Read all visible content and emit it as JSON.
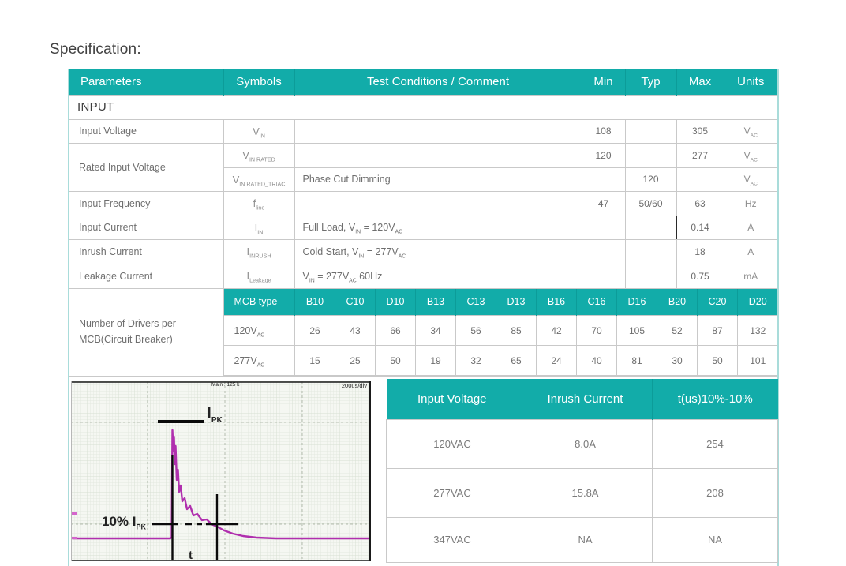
{
  "title": "Specification:",
  "colors": {
    "teal": "#12aca9",
    "magenta": "#b02fae"
  },
  "spec_table": {
    "headers": [
      "Parameters",
      "Symbols",
      "Test Conditions / Comment",
      "Min",
      "Typ",
      "Max",
      "Units"
    ],
    "section": "INPUT",
    "rows": [
      {
        "param": "Input Voltage",
        "symbol": [
          {
            "t": "V"
          },
          {
            "s": "IN"
          }
        ],
        "cond": [],
        "min": "108",
        "typ": "",
        "max": "305",
        "units": [
          {
            "t": "V"
          },
          {
            "s": "AC"
          }
        ]
      },
      {
        "param": "Rated Input Voltage",
        "symbol": [
          {
            "t": "V"
          },
          {
            "s": "IN RATED"
          }
        ],
        "cond": [],
        "min": "120",
        "typ": "",
        "max": "277",
        "units": [
          {
            "t": "V"
          },
          {
            "s": "AC"
          }
        ]
      },
      {
        "symbol": [
          {
            "t": "V"
          },
          {
            "s": "IN RATED_TRIAC"
          }
        ],
        "cond": [
          {
            "t": "Phase Cut Dimming"
          }
        ],
        "min": "",
        "typ": "120",
        "max": "",
        "units": [
          {
            "t": "V"
          },
          {
            "s": "AC"
          }
        ]
      },
      {
        "param": "Input Frequency",
        "symbol": [
          {
            "t": "f"
          },
          {
            "s": "line"
          }
        ],
        "cond": [],
        "min": "47",
        "typ": "50/60",
        "max": "63",
        "units": [
          {
            "t": "Hz"
          }
        ]
      },
      {
        "param": "Input Current",
        "symbol": [
          {
            "t": "I"
          },
          {
            "s": "IN"
          }
        ],
        "cond": [
          {
            "t": "Full Load, V"
          },
          {
            "s": "IN"
          },
          {
            "t": " = 120V"
          },
          {
            "s": "AC"
          }
        ],
        "min": "",
        "typ": "",
        "max": "0.14",
        "units": [
          {
            "t": "A"
          }
        ]
      },
      {
        "param": "Inrush Current",
        "symbol": [
          {
            "t": "I"
          },
          {
            "s": "INRUSH"
          }
        ],
        "cond": [
          {
            "t": "Cold Start, V"
          },
          {
            "s": "IN"
          },
          {
            "t": " = 277V"
          },
          {
            "s": "AC"
          }
        ],
        "min": "",
        "typ": "",
        "max": "18",
        "units": [
          {
            "t": "A"
          }
        ]
      },
      {
        "param": "Leakage Current",
        "symbol": [
          {
            "t": "I"
          },
          {
            "s": "Leakage"
          }
        ],
        "cond": [
          {
            "t": "V"
          },
          {
            "s": "IN"
          },
          {
            "t": " = 277V"
          },
          {
            "s": "AC"
          },
          {
            "t": " 60Hz"
          }
        ],
        "min": "",
        "typ": "",
        "max": "0.75",
        "units": [
          {
            "t": "mA"
          }
        ]
      }
    ]
  },
  "mcb_table": {
    "param_label_line1": "Number of Drivers per",
    "param_label_line2": "MCB(Circuit Breaker)",
    "headers": [
      "MCB type",
      "B10",
      "C10",
      "D10",
      "B13",
      "C13",
      "D13",
      "B16",
      "C16",
      "D16",
      "B20",
      "C20",
      "D20"
    ],
    "rows": [
      {
        "label": [
          {
            "t": "120V"
          },
          {
            "s": "AC"
          }
        ],
        "values": [
          "26",
          "43",
          "66",
          "34",
          "56",
          "85",
          "42",
          "70",
          "105",
          "52",
          "87",
          "132"
        ]
      },
      {
        "label": [
          {
            "t": "277V"
          },
          {
            "s": "AC"
          }
        ],
        "values": [
          "15",
          "25",
          "50",
          "19",
          "32",
          "65",
          "24",
          "40",
          "81",
          "30",
          "50",
          "101"
        ]
      }
    ]
  },
  "scope": {
    "top_label": "Main : 125 k",
    "timebase_label": "200us/div",
    "peak_label": [
      {
        "t": "I"
      },
      {
        "s": "PK"
      }
    ],
    "threshold_label": [
      {
        "t": "10% I"
      },
      {
        "s": "PK"
      }
    ],
    "time_axis_label": "t"
  },
  "inrush_table": {
    "headers": [
      "Input Voltage",
      "Inrush Current",
      "t(us)10%-10%"
    ],
    "rows": [
      [
        "120VAC",
        "8.0A",
        "254"
      ],
      [
        "277VAC",
        "15.8A",
        "208"
      ],
      [
        "347VAC",
        "NA",
        "NA"
      ]
    ]
  }
}
